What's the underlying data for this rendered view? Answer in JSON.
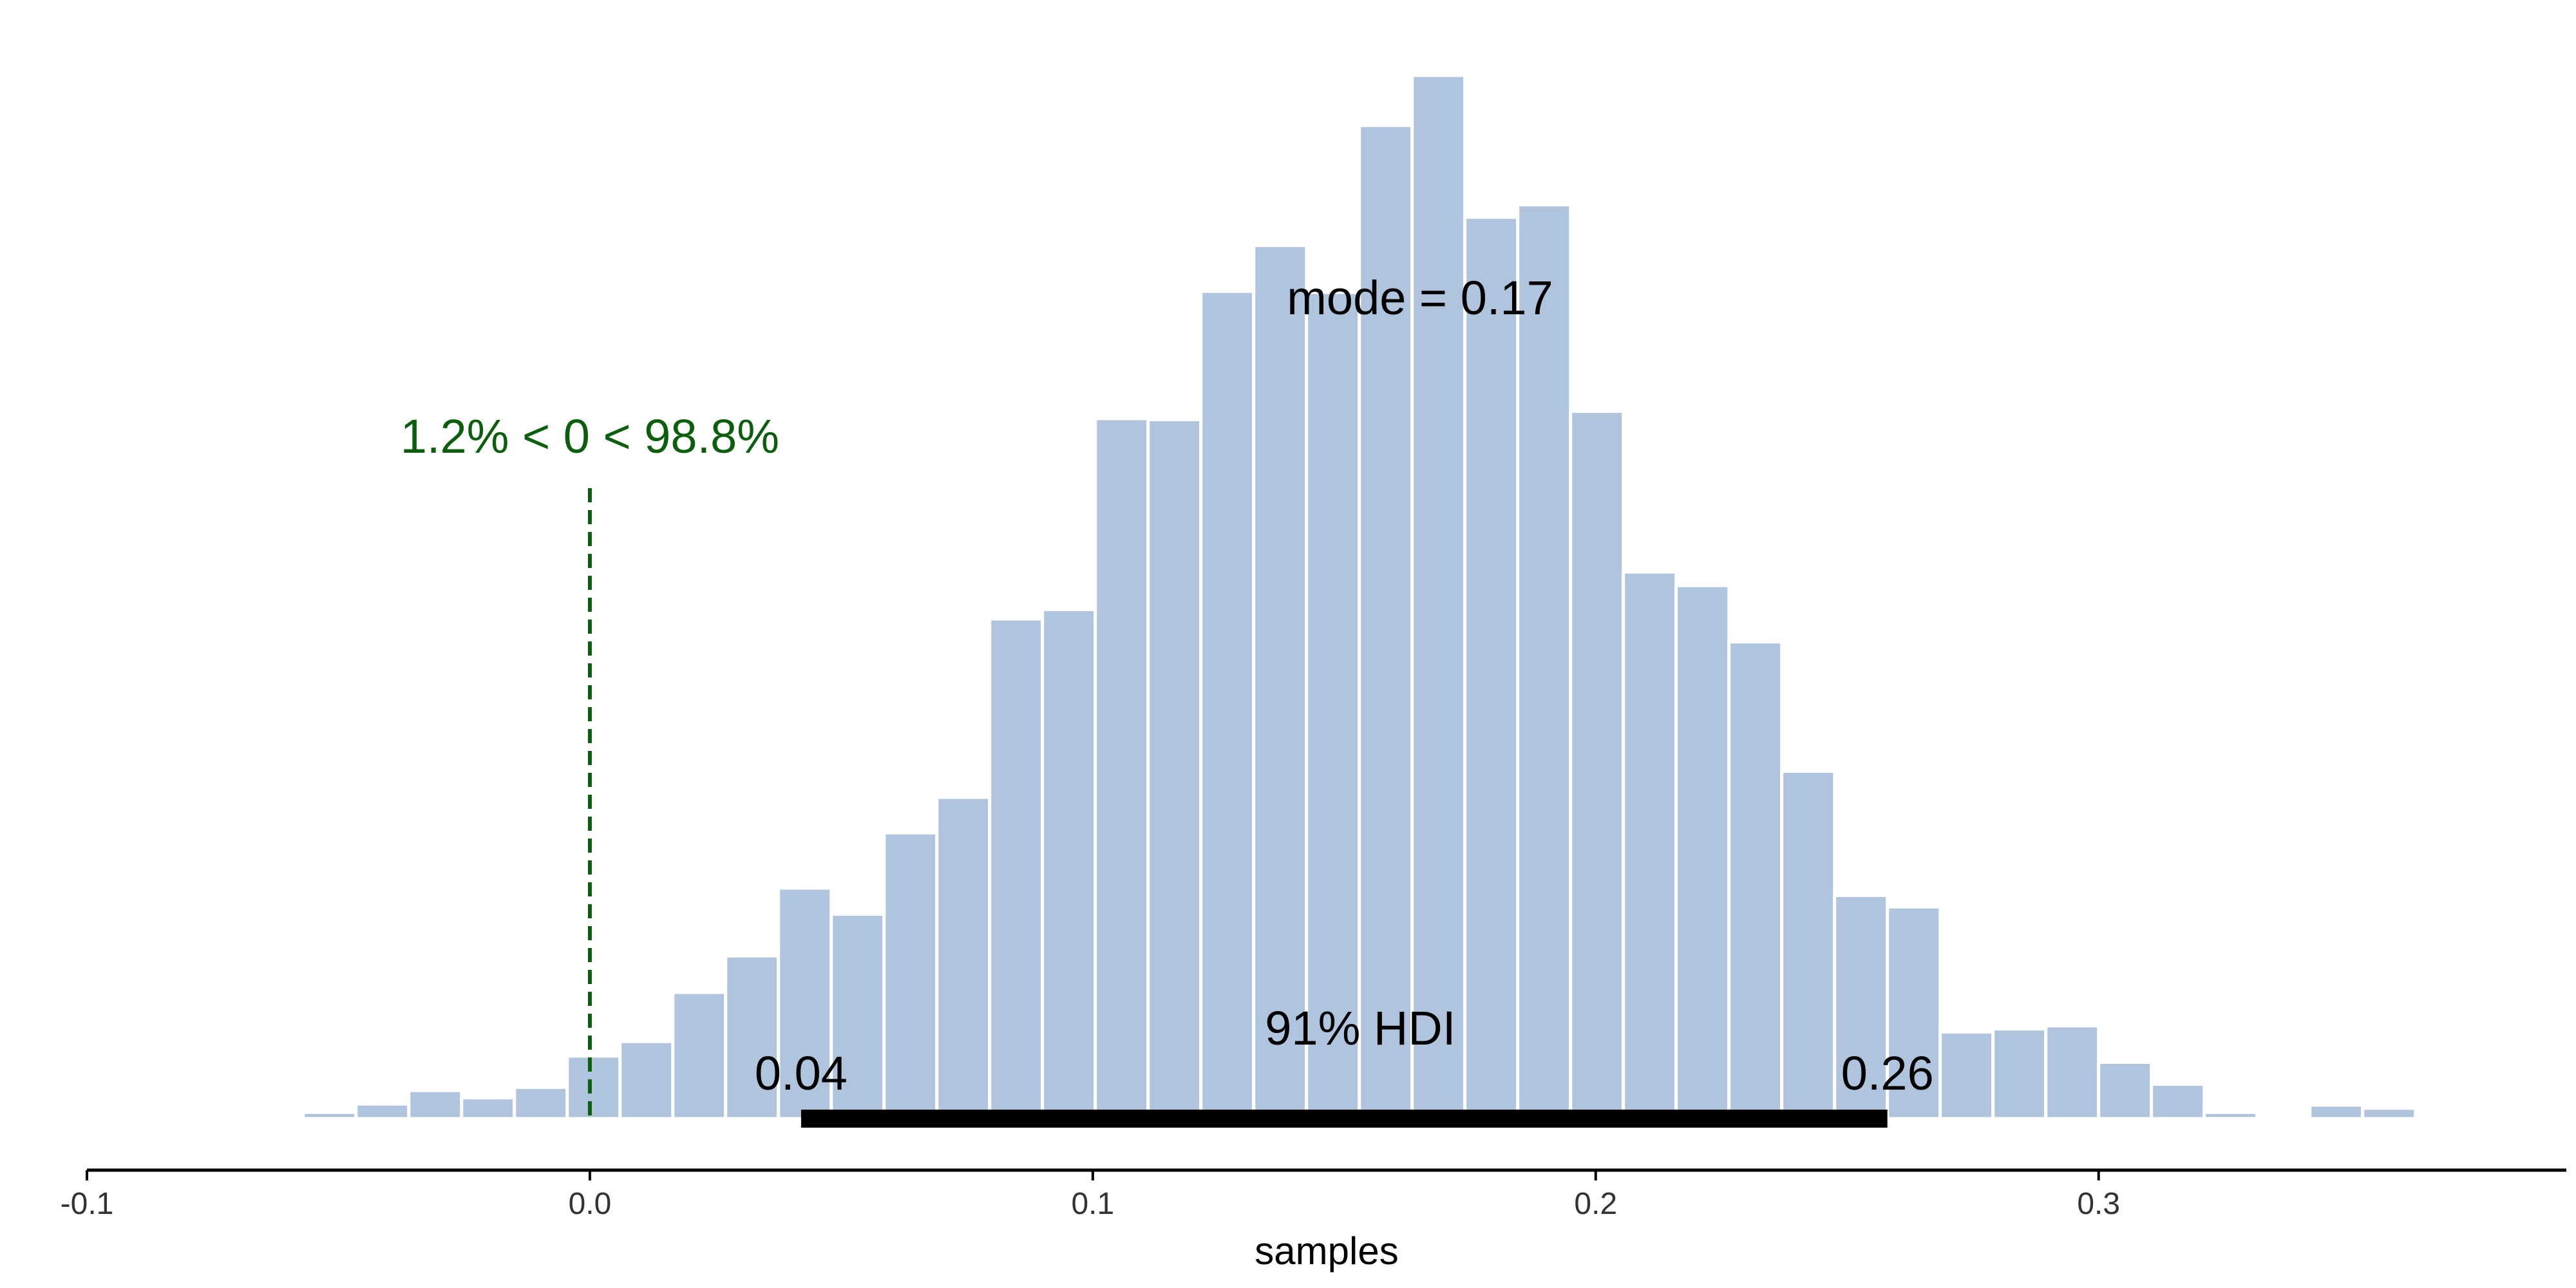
{
  "chart_data": {
    "type": "histogram",
    "xlabel": "samples",
    "ylabel": "",
    "xlim": [
      -0.1,
      0.393
    ],
    "ylim": [
      0,
      1000
    ],
    "xticks": [
      -0.1,
      0.0,
      0.1,
      0.2,
      0.3
    ],
    "xtick_labels": [
      "-0.1",
      "0.0",
      "0.1",
      "0.2",
      "0.3"
    ],
    "grid": false,
    "legend": "none",
    "colors": {
      "bars": "#b0c4de",
      "bar_outline": "#ffffff",
      "hdi": "#000000",
      "reference": "#0b5e0b",
      "axis": "#000000"
    },
    "bin_width": 0.0105,
    "bin_edges_start": -0.0675,
    "bar_counts": [
      3,
      6,
      14,
      27,
      20,
      30,
      60,
      74,
      121,
      156,
      221,
      196,
      274,
      308,
      479,
      488,
      671,
      670,
      793,
      837,
      792,
      952,
      1000,
      864,
      876,
      678,
      524,
      511,
      457,
      333,
      214,
      203,
      83,
      86,
      89,
      54,
      33,
      6,
      0,
      13,
      10
    ],
    "mode": {
      "value": 0.17,
      "label": "mode = 0.17"
    },
    "hdi": {
      "label": "91% HDI",
      "low": 0.042,
      "high": 0.258,
      "low_label": "0.04",
      "high_label": "0.26"
    },
    "reference": {
      "value": 0.0,
      "label": "1.2% < 0 < 98.8%"
    }
  }
}
